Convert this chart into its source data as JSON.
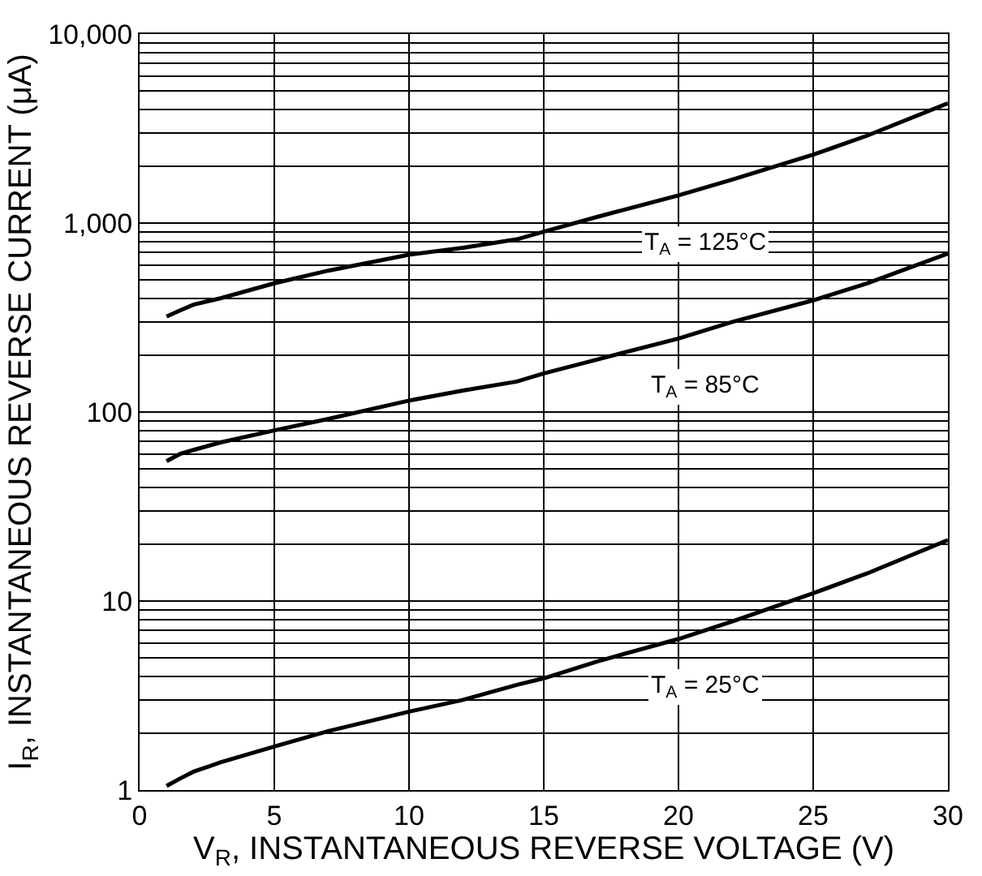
{
  "chart_data": {
    "type": "line",
    "xlabel": "V$_{R}$, INSTANTANEOUS REVERSE VOLTAGE (V)",
    "ylabel": "I$_{R}$, INSTANTANEOUS REVERSE CURRENT (μA)",
    "log": "y",
    "grid": true,
    "legend": false,
    "marker": "none",
    "line_style": "solid",
    "xlim": [
      0,
      30
    ],
    "xticks": [
      0,
      5,
      10,
      15,
      20,
      25,
      30
    ],
    "ylim": [
      1,
      10000
    ],
    "yticks": [
      {
        "value": 1,
        "label": "1"
      },
      {
        "value": 2,
        "label": null
      },
      {
        "value": 3,
        "label": null
      },
      {
        "value": 4,
        "label": null
      },
      {
        "value": 5,
        "label": null
      },
      {
        "value": 6,
        "label": null
      },
      {
        "value": 7,
        "label": null
      },
      {
        "value": 8,
        "label": null
      },
      {
        "value": 9,
        "label": null
      },
      {
        "value": 10,
        "label": "10"
      },
      {
        "value": 20,
        "label": null
      },
      {
        "value": 30,
        "label": null
      },
      {
        "value": 40,
        "label": null
      },
      {
        "value": 50,
        "label": null
      },
      {
        "value": 60,
        "label": null
      },
      {
        "value": 70,
        "label": null
      },
      {
        "value": 80,
        "label": null
      },
      {
        "value": 90,
        "label": null
      },
      {
        "value": 100,
        "label": "100"
      },
      {
        "value": 200,
        "label": null
      },
      {
        "value": 300,
        "label": null
      },
      {
        "value": 400,
        "label": null
      },
      {
        "value": 500,
        "label": null
      },
      {
        "value": 600,
        "label": null
      },
      {
        "value": 700,
        "label": null
      },
      {
        "value": 800,
        "label": null
      },
      {
        "value": 900,
        "label": null
      },
      {
        "value": 1000,
        "label": "1,000"
      },
      {
        "value": 2000,
        "label": null
      },
      {
        "value": 3000,
        "label": null
      },
      {
        "value": 4000,
        "label": null
      },
      {
        "value": 5000,
        "label": null
      },
      {
        "value": 6000,
        "label": null
      },
      {
        "value": 7000,
        "label": null
      },
      {
        "value": 8000,
        "label": null
      },
      {
        "value": 9000,
        "label": null
      },
      {
        "value": 10000,
        "label": "10,000"
      }
    ],
    "x": [
      1,
      1.5,
      2,
      3,
      5,
      7,
      10,
      12,
      14,
      15,
      17,
      20,
      22,
      25,
      27,
      30
    ],
    "series": [
      {
        "name": "T$_{A}$ = 125°C",
        "color": "#000000",
        "values": [
          320,
          345,
          370,
          400,
          480,
          560,
          680,
          740,
          820,
          900,
          1080,
          1400,
          1700,
          2300,
          2900,
          4300
        ]
      },
      {
        "name": "T$_{A}$ = 85°C",
        "color": "#000000",
        "values": [
          55,
          60,
          63,
          69,
          80,
          92,
          115,
          130,
          145,
          160,
          190,
          245,
          300,
          390,
          480,
          690
        ]
      },
      {
        "name": "T$_{A}$ = 25°C",
        "color": "#000000",
        "values": [
          1.05,
          1.15,
          1.25,
          1.4,
          1.7,
          2.05,
          2.6,
          3.0,
          3.6,
          3.9,
          4.8,
          6.3,
          7.8,
          11,
          14,
          21
        ]
      }
    ]
  }
}
